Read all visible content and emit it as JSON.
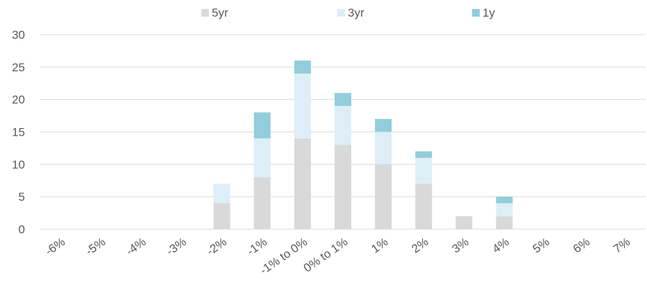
{
  "chart_data": {
    "type": "bar",
    "stacked": true,
    "categories": [
      "-6%",
      "-5%",
      "-4%",
      "-3%",
      "-2%",
      "-1%",
      "-1% to 0%",
      "0% to 1%",
      "1%",
      "2%",
      "3%",
      "4%",
      "5%",
      "6%",
      "7%"
    ],
    "series": [
      {
        "name": "5yr",
        "color": "#d9d9d9",
        "values": [
          0,
          0,
          0,
          0,
          4,
          8,
          14,
          13,
          10,
          7,
          2,
          2,
          0,
          0,
          0
        ]
      },
      {
        "name": "3yr",
        "color": "#ddeef6",
        "values": [
          0,
          0,
          0,
          0,
          3,
          6,
          10,
          6,
          5,
          4,
          0,
          2,
          0,
          0,
          0
        ]
      },
      {
        "name": "1y",
        "color": "#92cddc",
        "values": [
          0,
          0,
          0,
          0,
          0,
          4,
          2,
          2,
          2,
          1,
          0,
          1,
          0,
          0,
          0
        ]
      }
    ],
    "yticks": [
      0,
      5,
      10,
      15,
      20,
      25,
      30
    ],
    "ylim": [
      0,
      30
    ],
    "grid": true,
    "legend_position": "top"
  }
}
